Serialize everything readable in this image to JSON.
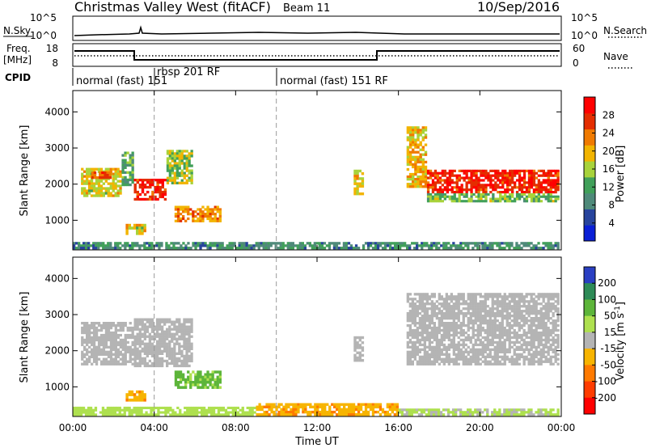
{
  "header": {
    "title": "Christmas Valley West (fitACF)",
    "beam": "Beam 11",
    "date": "10/Sep/2016"
  },
  "noise_panel": {
    "left_label": "N.Sky",
    "right_label": "N.Search",
    "left_ticks": [
      "10^5",
      "10^0"
    ],
    "right_ticks": [
      "10^5",
      "10^0"
    ]
  },
  "freq_panel": {
    "left_label_1": "Freq.",
    "left_label_2": "[MHz]",
    "right_label": "Nave",
    "left_ticks": [
      "18",
      "8"
    ],
    "right_ticks": [
      "60",
      "0"
    ]
  },
  "cpid": {
    "label": "CPID",
    "modes": [
      {
        "name": "normal (fast) 151",
        "start_h": 0.0
      },
      {
        "name": "rbsp 201 RF",
        "start_h": 3.9
      },
      {
        "name": "normal (fast) 151 RF",
        "start_h": 10.0
      }
    ]
  },
  "colors": {
    "power": [
      "#0a1fd6",
      "#27449c",
      "#4f8a7a",
      "#41a05a",
      "#a8d33b",
      "#f2b400",
      "#f07a00",
      "#e42d00",
      "#ff0000"
    ],
    "velocity": [
      "#ff0000",
      "#ff3c00",
      "#ff7a00",
      "#f7b400",
      "#b4b4b4",
      "#aee04f",
      "#5db53a",
      "#2e8b57",
      "#2a3fc2"
    ],
    "ground_scatter": "#b4b4b4"
  },
  "chart_data": [
    {
      "type": "heatmap",
      "panel": "power",
      "ylabel": "Slant Range [km]",
      "ylim": [
        180,
        4590
      ],
      "xlim": [
        0,
        24
      ],
      "yticks": [
        1000,
        2000,
        3000,
        4000
      ],
      "xticks": [
        "00:00",
        "04:00",
        "08:00",
        "12:00",
        "16:00",
        "20:00",
        "00:00"
      ],
      "colorbar": {
        "label": "Power [dB]",
        "ticks": [
          4,
          8,
          12,
          16,
          20,
          24,
          28
        ],
        "range": [
          0,
          32
        ]
      },
      "regions": [
        {
          "t0": 0.4,
          "t1": 2.4,
          "r0": 1650,
          "r1": 2450,
          "power": 18
        },
        {
          "t0": 0.9,
          "t1": 1.9,
          "r0": 2150,
          "r1": 2350,
          "power": 26
        },
        {
          "t0": 2.4,
          "t1": 3.0,
          "r0": 1950,
          "r1": 2900,
          "power": 12
        },
        {
          "t0": 3.0,
          "t1": 4.6,
          "r0": 1550,
          "r1": 2150,
          "power": 28
        },
        {
          "t0": 4.6,
          "t1": 5.9,
          "r0": 2000,
          "r1": 2950,
          "power": 16
        },
        {
          "t0": 2.6,
          "t1": 3.6,
          "r0": 600,
          "r1": 900,
          "power": 18
        },
        {
          "t0": 5.0,
          "t1": 7.3,
          "r0": 950,
          "r1": 1400,
          "power": 22
        },
        {
          "t0": 13.8,
          "t1": 14.3,
          "r0": 1700,
          "r1": 2400,
          "power": 18
        },
        {
          "t0": 16.4,
          "t1": 17.4,
          "r0": 1900,
          "r1": 3600,
          "power": 20
        },
        {
          "t0": 17.4,
          "t1": 23.9,
          "r0": 1750,
          "r1": 2400,
          "power": 28
        },
        {
          "t0": 17.4,
          "t1": 23.9,
          "r0": 1500,
          "r1": 1750,
          "power": 14
        },
        {
          "t0": 0.0,
          "t1": 23.9,
          "r0": 200,
          "r1": 400,
          "power": 10
        }
      ]
    },
    {
      "type": "heatmap",
      "panel": "velocity",
      "ylabel": "Slant Range [km]",
      "xlabel": "Time UT",
      "ylim": [
        180,
        4590
      ],
      "xlim": [
        0,
        24
      ],
      "yticks": [
        1000,
        2000,
        3000,
        4000
      ],
      "xticks": [
        "00:00",
        "04:00",
        "08:00",
        "12:00",
        "16:00",
        "20:00",
        "00:00"
      ],
      "colorbar": {
        "label": "Velocity [m s",
        "label_sup": "-1",
        "label_end": "]",
        "ticks": [
          200,
          100,
          50,
          15,
          -15,
          -50,
          -100,
          -200
        ]
      },
      "regions": [
        {
          "t0": 0.4,
          "t1": 3.0,
          "r0": 1600,
          "r1": 2800,
          "velocity": 0,
          "ground": true
        },
        {
          "t0": 3.0,
          "t1": 5.9,
          "r0": 1550,
          "r1": 2900,
          "velocity": 0,
          "ground": true
        },
        {
          "t0": 2.6,
          "t1": 3.6,
          "r0": 600,
          "r1": 900,
          "velocity": -40
        },
        {
          "t0": 5.0,
          "t1": 7.3,
          "r0": 950,
          "r1": 1450,
          "velocity": 60
        },
        {
          "t0": 13.8,
          "t1": 14.3,
          "r0": 1700,
          "r1": 2400,
          "velocity": 0,
          "ground": true
        },
        {
          "t0": 16.4,
          "t1": 23.9,
          "r0": 1600,
          "r1": 3600,
          "velocity": 0,
          "ground": true
        },
        {
          "t0": 0.0,
          "t1": 9.0,
          "r0": 200,
          "r1": 450,
          "velocity": 30
        },
        {
          "t0": 9.0,
          "t1": 16.0,
          "r0": 200,
          "r1": 550,
          "velocity": -40
        },
        {
          "t0": 16.0,
          "t1": 23.9,
          "r0": 200,
          "r1": 400,
          "velocity": 20
        }
      ]
    }
  ]
}
